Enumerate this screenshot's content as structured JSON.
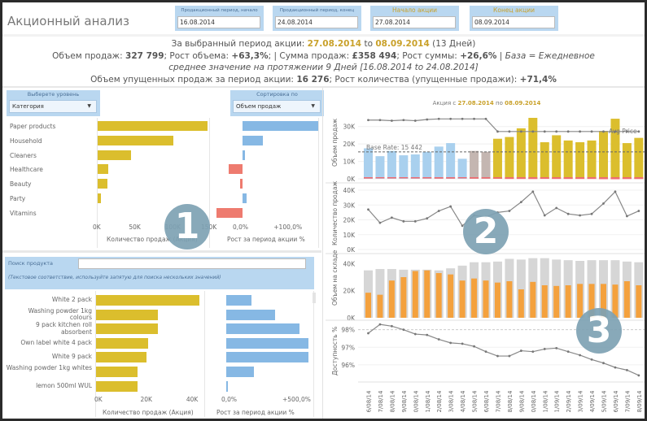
{
  "header": {
    "title": "Акционный анализ",
    "params": [
      {
        "label": "Продакционный период, начало",
        "value": "16.08.2014",
        "style": "blue"
      },
      {
        "label": "Продакционный период, конец",
        "value": "24.08.2014",
        "style": "blue"
      },
      {
        "label": "Начало акции",
        "value": "27.08.2014",
        "style": "gold"
      },
      {
        "label": "Конец акции",
        "value": "08.09.2014",
        "style": "gold"
      }
    ]
  },
  "summary": {
    "l1_prefix": "За выбранный период акции: ",
    "l1_start": "27.08.2014",
    "l1_to": " to ",
    "l1_end": "08.09.2014",
    "l1_days": " (13 Дней)",
    "l2_vol_label": "Объем продаж: ",
    "l2_vol": "327 799",
    "l2_growth_label": "; Рост объема: ",
    "l2_growth": "+63,3%",
    "l2_sum_label": "; | Сумма продаж: ",
    "l2_sum": "£358 494",
    "l2_sum_growth_label": "; Рост суммы: ",
    "l2_sum_growth": "+26,6%",
    "l2_base": " | База = Ежедневное",
    "l3": "среднее значение на протяжении 9 Дней [16.08.2014 to 24.08.2014]",
    "l4_label": "Объем упущенных продаж за период акции: ",
    "l4_val": "16 276",
    "l4_growth_label": "; Рост количества (упущенные продажи): ",
    "l4_growth": "+71,4%"
  },
  "panel1": {
    "level_label": "Выберете уровень",
    "level_value": "Категория",
    "sort_label": "Сортировка по",
    "sort_value": "Объем продаж",
    "categories": [
      "Paper products",
      "Household",
      "Cleaners",
      "Healthcare",
      "Beauty",
      "Party",
      "Vitamins"
    ],
    "volume": [
      152000,
      105000,
      46000,
      15000,
      14000,
      4000,
      0
    ],
    "growth_pct": [
      185,
      50,
      5,
      -33,
      -5,
      10,
      -63
    ],
    "volume_ticks": [
      "0K",
      "50K",
      "100K",
      "150K"
    ],
    "growth_ticks": [
      "0,0%",
      "+100,0%"
    ],
    "volume_axis_title": "Количество продаж (Акция)",
    "growth_axis_title": "Рост за период акции %",
    "badge": "1"
  },
  "search": {
    "label": "Поиск продукта",
    "value": "",
    "hint": "(Текстовое соответствие, используйте запятую для поиска нескольких значений)"
  },
  "panel_products": {
    "products": [
      "White 2 pack",
      "Washing powder 1kg colours",
      "9 pack kitchen roll absorbent",
      "Own label white 4 pack",
      "White 9 pack",
      "Washing powder 1kg whites",
      "lemon 500ml WUL"
    ],
    "volume": [
      45000,
      27000,
      27000,
      22500,
      22000,
      18000,
      18000
    ],
    "growth_pct": [
      155,
      295,
      445,
      500,
      500,
      170,
      10
    ],
    "volume_ticks": [
      "0K",
      "20K",
      "40K"
    ],
    "growth_ticks": [
      "0,0%",
      "+500,0%"
    ],
    "volume_axis_title": "Количество продаж (Акция)",
    "growth_axis_title": "Рост за период акции %"
  },
  "timeseries": {
    "title_prefix": "Акция с ",
    "title_start": "27.08.2014",
    "title_mid": " по ",
    "title_end": "08.09.2014",
    "dates": [
      "16/08/14",
      "17/08/14",
      "18/08/14",
      "19/08/14",
      "20/08/14",
      "21/08/14",
      "22/08/14",
      "23/08/14",
      "24/08/14",
      "25/08/14",
      "26/08/14",
      "27/08/14",
      "28/08/14",
      "29/08/14",
      "30/08/14",
      "31/08/14",
      "01/09/14",
      "02/09/14",
      "03/09/14",
      "04/09/14",
      "05/09/14",
      "06/09/14",
      "07/09/14",
      "08/09/14"
    ],
    "phase": [
      "pre",
      "pre",
      "pre",
      "pre",
      "pre",
      "pre",
      "pre",
      "pre",
      "pre",
      "gap",
      "gap",
      "promo",
      "promo",
      "promo",
      "promo",
      "promo",
      "promo",
      "promo",
      "promo",
      "promo",
      "promo",
      "promo",
      "promo",
      "promo"
    ],
    "sales_volume": [
      17500,
      13000,
      16000,
      13500,
      14000,
      15500,
      18500,
      20500,
      11500,
      16000,
      15500,
      23000,
      24000,
      29000,
      35000,
      21000,
      25000,
      22000,
      21000,
      22000,
      27500,
      34500,
      20500,
      23500
    ],
    "lost_sales": [
      700,
      500,
      600,
      500,
      600,
      600,
      800,
      800,
      500,
      800,
      700,
      900,
      1200,
      1200,
      1300,
      1100,
      1200,
      1200,
      1200,
      1200,
      1500,
      1600,
      1300,
      1300
    ],
    "avg_price_label": "Avg Price",
    "base_rate_label": "Base Rate: 15 442",
    "base_rate": 15442,
    "avg_price_relative": [
      0.95,
      0.95,
      0.94,
      0.95,
      0.94,
      0.96,
      0.97,
      0.97,
      0.97,
      0.97,
      0.97,
      0.76,
      0.76,
      0.76,
      0.76,
      0.76,
      0.76,
      0.76,
      0.76,
      0.76,
      0.76,
      0.76,
      0.76,
      0.76
    ],
    "sales_ticks": [
      "0K",
      "10K",
      "20K",
      "30K"
    ],
    "sales_ylabel": "Объем продаж",
    "quantity": [
      27000,
      18000,
      21500,
      19000,
      19000,
      21000,
      26000,
      29000,
      16000,
      23000,
      22000,
      25000,
      26000,
      32000,
      39000,
      23000,
      28000,
      24000,
      23000,
      24000,
      31000,
      39000,
      22500,
      26000
    ],
    "quantity_ticks": [
      "0K",
      "10K",
      "20K",
      "30K",
      "40K"
    ],
    "quantity_ylabel": "Количество продаж",
    "stock_total": [
      35000,
      36000,
      36000,
      35500,
      35500,
      35500,
      35000,
      36500,
      38500,
      41000,
      41000,
      41500,
      43500,
      43000,
      44000,
      44000,
      43000,
      42500,
      42000,
      42500,
      42500,
      42500,
      41500,
      41000
    ],
    "stock_level": [
      18500,
      17000,
      27500,
      30000,
      34500,
      35000,
      33000,
      32000,
      27500,
      29000,
      27500,
      26000,
      27000,
      21000,
      26500,
      24000,
      23500,
      24000,
      25000,
      25000,
      25000,
      24500,
      27000,
      24000
    ],
    "stock_ticks": [
      "0K",
      "20K",
      "40K"
    ],
    "stock_ylabel": "Объем на складе",
    "availability": [
      97.8,
      98.3,
      98.2,
      98.0,
      97.75,
      97.7,
      97.45,
      97.25,
      97.2,
      97.05,
      96.75,
      96.5,
      96.5,
      96.8,
      96.75,
      96.9,
      96.95,
      96.75,
      96.55,
      96.3,
      96.1,
      95.85,
      95.7,
      95.4
    ],
    "availability_ticks": [
      "96%",
      "97%",
      "98%"
    ],
    "availability_ylabel": "Доступность %",
    "badge2": "2",
    "badge3": "3"
  },
  "colors": {
    "promo": "#dbbe2d",
    "pre": "#a9d0ee",
    "gap": "#c4b6b1",
    "lost": "#ee6d72",
    "blue": "#86b8e4",
    "red": "#ee7b6f",
    "stock_bg": "#d6d6d6",
    "stock_fg": "#f4a13d",
    "line": "#888888",
    "accent_gold": "#c9a12a"
  }
}
